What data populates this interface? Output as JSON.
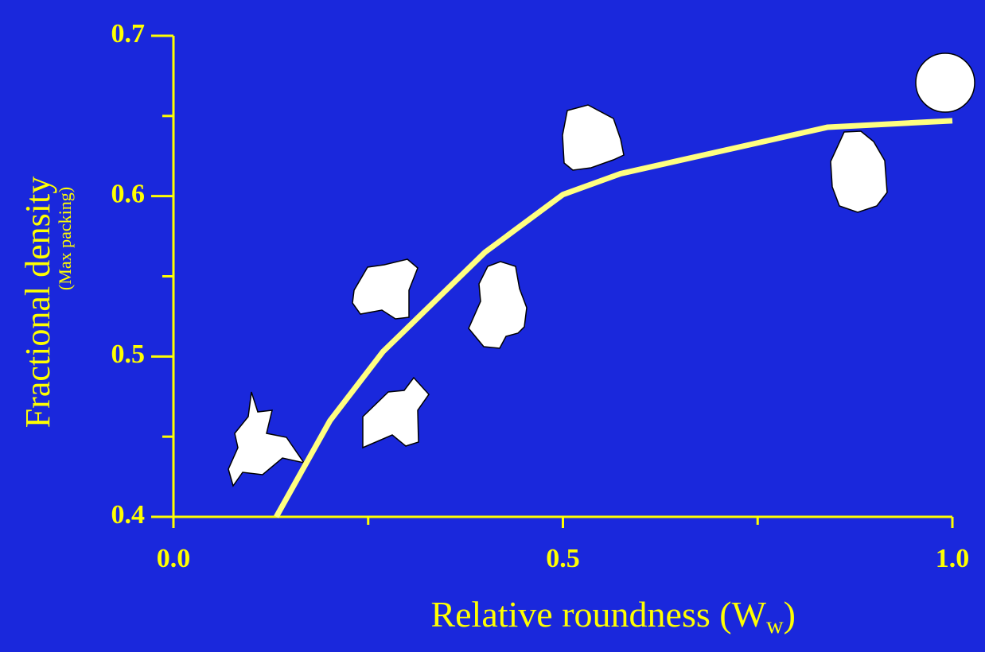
{
  "chart_data": {
    "type": "line",
    "xlabel": [
      "Relative roundness (W",
      "w",
      ")"
    ],
    "ylabel": "Fractional density",
    "ylabel_note": "(Max packing)",
    "x": [
      0.132,
      0.201,
      0.269,
      0.4,
      0.5,
      0.574,
      0.84,
      1.0
    ],
    "values": [
      0.4,
      0.46,
      0.503,
      0.565,
      0.601,
      0.614,
      0.643,
      0.647
    ],
    "color": "#ffff80",
    "axis_color": "#ffff00",
    "xlim": [
      0,
      1
    ],
    "ylim": [
      0.4,
      0.7
    ],
    "xticks": [
      {
        "value": 0,
        "label": "0.0"
      },
      0.5,
      {
        "value": 1,
        "label": "1.0"
      }
    ],
    "xminorticks": [
      0.25,
      0.75
    ],
    "yticks": [
      0.4,
      0.5,
      0.6,
      0.7
    ],
    "yminorticks": [
      0.45,
      0.55,
      0.65
    ]
  }
}
